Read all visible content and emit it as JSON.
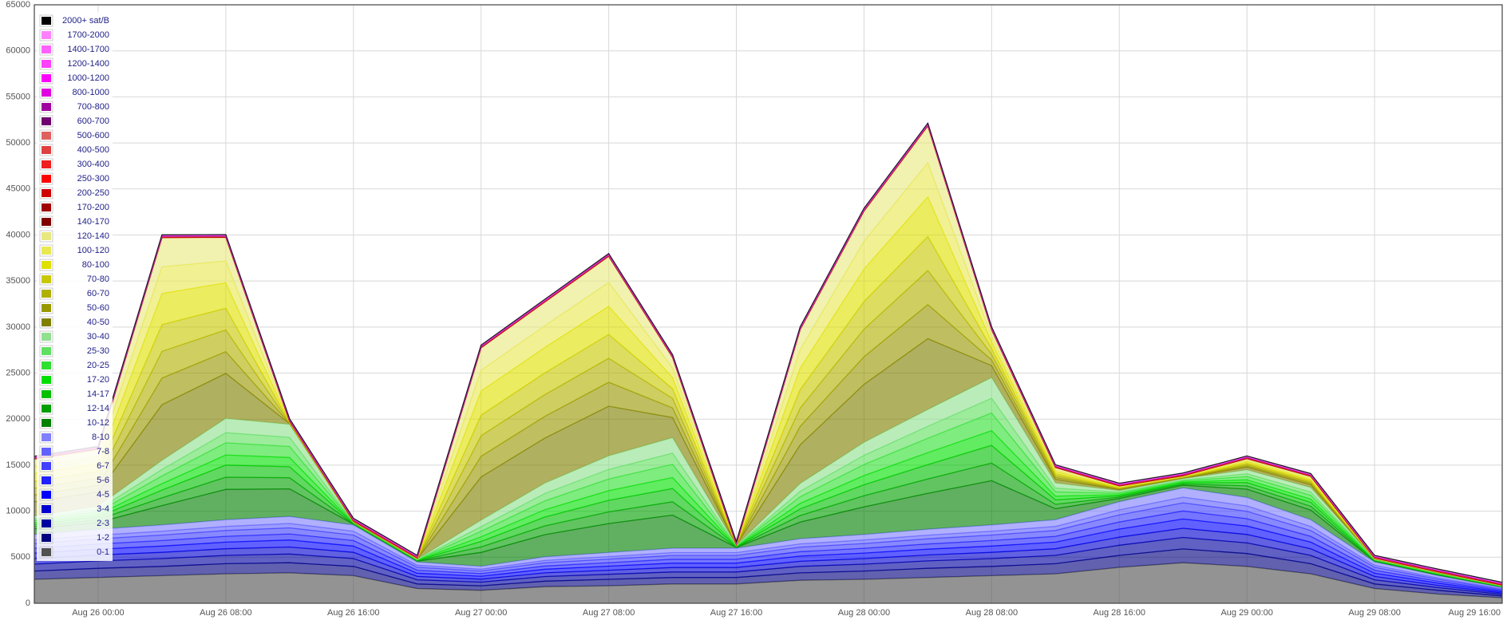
{
  "chart_data": {
    "type": "stacked-area",
    "x": [
      "Aug 25 20:00",
      "Aug 26 00:00",
      "Aug 26 04:00",
      "Aug 26 08:00",
      "Aug 26 12:00",
      "Aug 26 16:00",
      "Aug 26 20:00",
      "Aug 27 00:00",
      "Aug 27 04:00",
      "Aug 27 08:00",
      "Aug 27 12:00",
      "Aug 27 16:00",
      "Aug 27 20:00",
      "Aug 28 00:00",
      "Aug 28 04:00",
      "Aug 28 08:00",
      "Aug 28 12:00",
      "Aug 28 16:00",
      "Aug 28 20:00",
      "Aug 29 00:00",
      "Aug 29 04:00",
      "Aug 29 08:00",
      "Aug 29 12:00",
      "Aug 29 16:00"
    ],
    "xlim": [
      "Aug 25 20:00",
      "Aug 29 16:00"
    ],
    "xticks": [
      "Aug 26 00:00",
      "Aug 26 08:00",
      "Aug 26 16:00",
      "Aug 27 00:00",
      "Aug 27 08:00",
      "Aug 27 16:00",
      "Aug 28 00:00",
      "Aug 28 08:00",
      "Aug 28 16:00",
      "Aug 29 00:00",
      "Aug 29 08:00",
      "Aug 29 16:00"
    ],
    "ylim": [
      0,
      65000
    ],
    "yticks": [
      0,
      5000,
      10000,
      15000,
      20000,
      25000,
      30000,
      35000,
      40000,
      45000,
      50000,
      55000,
      60000,
      65000
    ],
    "grid": true,
    "legend": "top-left",
    "series": [
      {
        "name": "0-1",
        "color": "#505050",
        "values": [
          2600,
          2800,
          3000,
          3200,
          3300,
          3000,
          1600,
          1400,
          1800,
          1900,
          2100,
          2100,
          2500,
          2600,
          2800,
          3000,
          3200,
          3900,
          4400,
          4000,
          3200,
          1600,
          1000,
          600
        ]
      },
      {
        "name": "1-2",
        "color": "#000080",
        "values": [
          900,
          1000,
          1000,
          1100,
          1100,
          1000,
          500,
          500,
          600,
          700,
          700,
          700,
          800,
          900,
          1000,
          1000,
          1100,
          1300,
          1500,
          1400,
          1100,
          500,
          400,
          200
        ]
      },
      {
        "name": "2-3",
        "color": "#0000a0",
        "values": [
          750,
          800,
          850,
          900,
          950,
          850,
          450,
          400,
          500,
          550,
          600,
          600,
          700,
          750,
          800,
          850,
          900,
          1100,
          1250,
          1150,
          900,
          450,
          300,
          170
        ]
      },
      {
        "name": "3-4",
        "color": "#0000d0",
        "values": [
          600,
          640,
          680,
          720,
          760,
          680,
          360,
          320,
          400,
          440,
          480,
          480,
          560,
          600,
          640,
          680,
          720,
          880,
          1000,
          920,
          720,
          360,
          240,
          140
        ]
      },
      {
        "name": "4-5",
        "color": "#0000ff",
        "values": [
          600,
          640,
          680,
          720,
          760,
          680,
          360,
          320,
          400,
          440,
          480,
          480,
          560,
          600,
          640,
          680,
          720,
          880,
          1000,
          920,
          720,
          360,
          240,
          140
        ]
      },
      {
        "name": "5-6",
        "color": "#2020ff",
        "values": [
          520,
          560,
          600,
          630,
          660,
          600,
          320,
          280,
          350,
          380,
          420,
          420,
          490,
          520,
          560,
          600,
          630,
          770,
          880,
          800,
          630,
          320,
          210,
          120
        ]
      },
      {
        "name": "6-7",
        "color": "#4040ff",
        "values": [
          520,
          560,
          600,
          630,
          660,
          600,
          320,
          280,
          350,
          380,
          420,
          420,
          490,
          520,
          560,
          600,
          630,
          770,
          880,
          800,
          630,
          320,
          210,
          120
        ]
      },
      {
        "name": "7-8",
        "color": "#6060ff",
        "values": [
          380,
          400,
          420,
          450,
          480,
          420,
          220,
          200,
          250,
          280,
          300,
          300,
          350,
          380,
          400,
          420,
          450,
          550,
          620,
          580,
          450,
          220,
          150,
          80
        ]
      },
      {
        "name": "8-10",
        "color": "#8080ff",
        "values": [
          600,
          640,
          680,
          720,
          760,
          680,
          360,
          320,
          400,
          440,
          480,
          480,
          560,
          600,
          640,
          680,
          720,
          880,
          1000,
          920,
          720,
          360,
          240,
          140
        ]
      },
      {
        "name": "10-12",
        "color": "#008000",
        "values": [
          600,
          750,
          2100,
          3300,
          3000,
          90,
          90,
          1500,
          2400,
          3150,
          3600,
          90,
          1800,
          3000,
          3900,
          4800,
          1200,
          360,
          300,
          900,
          1050,
          90,
          90,
          60
        ]
      },
      {
        "name": "12-14",
        "color": "#00a000",
        "values": [
          240,
          300,
          840,
          1320,
          1200,
          36,
          36,
          600,
          960,
          1260,
          1440,
          36,
          720,
          1200,
          1560,
          1920,
          480,
          144,
          120,
          360,
          420,
          36,
          36,
          24
        ]
      },
      {
        "name": "14-17",
        "color": "#00c000",
        "values": [
          240,
          300,
          840,
          1320,
          1200,
          36,
          36,
          600,
          960,
          1260,
          1440,
          36,
          720,
          1200,
          1560,
          1920,
          480,
          144,
          120,
          360,
          420,
          36,
          36,
          24
        ]
      },
      {
        "name": "17-20",
        "color": "#00e000",
        "values": [
          200,
          250,
          700,
          1100,
          1000,
          30,
          30,
          500,
          800,
          1050,
          1200,
          30,
          600,
          1000,
          1300,
          1600,
          400,
          120,
          100,
          300,
          350,
          30,
          30,
          20
        ]
      },
      {
        "name": "20-25",
        "color": "#30e030",
        "values": [
          240,
          300,
          840,
          1320,
          1200,
          36,
          36,
          600,
          960,
          1260,
          1440,
          36,
          720,
          1200,
          1560,
          1920,
          480,
          144,
          120,
          360,
          420,
          36,
          36,
          24
        ]
      },
      {
        "name": "25-30",
        "color": "#60e060",
        "values": [
          200,
          250,
          700,
          1100,
          1000,
          30,
          30,
          500,
          800,
          1050,
          1200,
          30,
          600,
          1000,
          1300,
          1600,
          400,
          120,
          100,
          300,
          350,
          30,
          30,
          20
        ]
      },
      {
        "name": "30-40",
        "color": "#90e090",
        "values": [
          280,
          350,
          980,
          1540,
          1400,
          42,
          42,
          700,
          1120,
          1470,
          1680,
          42,
          840,
          1400,
          1820,
          2240,
          560,
          168,
          140,
          420,
          490,
          42,
          42,
          28
        ]
      },
      {
        "name": "40-50",
        "color": "#808000",
        "values": [
          1550,
          1550,
          6050,
          4900,
          75,
          25,
          25,
          4700,
          4900,
          5400,
          2200,
          25,
          4200,
          6300,
          7700,
          1300,
          400,
          120,
          75,
          300,
          300,
          25,
          25,
          12
        ]
      },
      {
        "name": "50-60",
        "color": "#989800",
        "values": [
          740,
          740,
          2900,
          2360,
          36,
          12,
          12,
          2240,
          2360,
          2600,
          1040,
          12,
          2000,
          3000,
          3700,
          620,
          200,
          60,
          36,
          144,
          144,
          12,
          12,
          6
        ]
      },
      {
        "name": "60-70",
        "color": "#b0b000",
        "values": [
          740,
          740,
          2900,
          2360,
          36,
          12,
          12,
          2240,
          2360,
          2600,
          1040,
          12,
          2000,
          3000,
          3700,
          620,
          200,
          60,
          36,
          144,
          144,
          12,
          12,
          6
        ]
      },
      {
        "name": "70-80",
        "color": "#c8c800",
        "values": [
          740,
          740,
          2900,
          2360,
          36,
          12,
          12,
          2240,
          2360,
          2600,
          1040,
          12,
          2000,
          3000,
          3700,
          620,
          200,
          60,
          36,
          144,
          144,
          12,
          12,
          6
        ]
      },
      {
        "name": "80-100",
        "color": "#e0e000",
        "values": [
          870,
          870,
          3390,
          2760,
          42,
          14,
          14,
          2620,
          2760,
          3040,
          1220,
          14,
          2340,
          3530,
          4300,
          730,
          240,
          70,
          42,
          170,
          170,
          14,
          14,
          7
        ]
      },
      {
        "name": "100-120",
        "color": "#e8e850",
        "values": [
          740,
          740,
          2900,
          2360,
          36,
          12,
          12,
          2240,
          2360,
          2600,
          1040,
          12,
          2000,
          3000,
          3700,
          620,
          200,
          60,
          36,
          144,
          144,
          12,
          12,
          6
        ]
      },
      {
        "name": "120-140",
        "color": "#e8e880",
        "values": [
          800,
          800,
          3150,
          2560,
          39,
          13,
          13,
          2430,
          2560,
          2820,
          1130,
          13,
          2170,
          3280,
          3990,
          680,
          220,
          65,
          39,
          156,
          156,
          13,
          13,
          7
        ]
      },
      {
        "name": "140-170",
        "color": "#800000",
        "values": [
          20,
          20,
          20,
          20,
          20,
          20,
          20,
          20,
          20,
          20,
          20,
          20,
          20,
          20,
          20,
          20,
          20,
          20,
          20,
          20,
          20,
          20,
          20,
          20
        ]
      },
      {
        "name": "170-200",
        "color": "#a00000",
        "values": [
          20,
          20,
          20,
          20,
          20,
          20,
          20,
          20,
          20,
          20,
          20,
          20,
          20,
          20,
          20,
          20,
          20,
          20,
          20,
          20,
          20,
          20,
          20,
          20
        ]
      },
      {
        "name": "200-250",
        "color": "#d00000",
        "values": [
          20,
          20,
          20,
          20,
          20,
          20,
          20,
          20,
          20,
          20,
          20,
          20,
          20,
          20,
          20,
          20,
          20,
          20,
          20,
          20,
          20,
          20,
          20,
          20
        ]
      },
      {
        "name": "250-300",
        "color": "#ff0000",
        "values": [
          20,
          20,
          20,
          20,
          20,
          20,
          20,
          20,
          20,
          20,
          20,
          20,
          20,
          20,
          20,
          20,
          20,
          20,
          20,
          20,
          20,
          20,
          20,
          20
        ]
      },
      {
        "name": "300-400",
        "color": "#f02020",
        "values": [
          20,
          20,
          20,
          20,
          20,
          20,
          20,
          20,
          20,
          20,
          20,
          20,
          20,
          20,
          20,
          20,
          20,
          20,
          20,
          20,
          20,
          20,
          20,
          20
        ]
      },
      {
        "name": "400-500",
        "color": "#e04040",
        "values": [
          20,
          20,
          20,
          20,
          20,
          20,
          20,
          20,
          20,
          20,
          20,
          20,
          20,
          20,
          20,
          20,
          20,
          20,
          20,
          20,
          20,
          20,
          20,
          20
        ]
      },
      {
        "name": "500-600",
        "color": "#e06060",
        "values": [
          20,
          20,
          20,
          20,
          20,
          20,
          20,
          20,
          20,
          20,
          20,
          20,
          20,
          20,
          20,
          20,
          20,
          20,
          20,
          20,
          20,
          20,
          20,
          20
        ]
      },
      {
        "name": "600-700",
        "color": "#700070",
        "values": [
          20,
          20,
          20,
          20,
          20,
          20,
          20,
          20,
          20,
          20,
          20,
          20,
          20,
          20,
          20,
          20,
          20,
          20,
          20,
          20,
          20,
          20,
          20,
          20
        ]
      },
      {
        "name": "700-800",
        "color": "#a000a0",
        "values": [
          20,
          20,
          20,
          20,
          20,
          20,
          20,
          20,
          20,
          20,
          20,
          20,
          20,
          20,
          20,
          20,
          20,
          20,
          20,
          20,
          20,
          20,
          20,
          20
        ]
      },
      {
        "name": "800-1000",
        "color": "#e000e0",
        "values": [
          20,
          20,
          20,
          20,
          20,
          20,
          20,
          20,
          20,
          20,
          20,
          20,
          20,
          20,
          20,
          20,
          20,
          20,
          20,
          20,
          20,
          20,
          20,
          20
        ]
      },
      {
        "name": "1000-1200",
        "color": "#ff00ff",
        "values": [
          20,
          20,
          20,
          20,
          20,
          20,
          20,
          20,
          20,
          20,
          20,
          20,
          20,
          20,
          20,
          20,
          20,
          20,
          20,
          20,
          20,
          20,
          20,
          20
        ]
      },
      {
        "name": "1200-1400",
        "color": "#ff40ff",
        "values": [
          20,
          20,
          20,
          20,
          20,
          20,
          20,
          20,
          20,
          20,
          20,
          20,
          20,
          20,
          20,
          20,
          20,
          20,
          20,
          20,
          20,
          20,
          20,
          20
        ]
      },
      {
        "name": "1400-1700",
        "color": "#ff60ff",
        "values": [
          20,
          20,
          20,
          20,
          20,
          20,
          20,
          20,
          20,
          20,
          20,
          20,
          20,
          20,
          20,
          20,
          20,
          20,
          20,
          20,
          20,
          20,
          20,
          20
        ]
      },
      {
        "name": "1700-2000",
        "color": "#ff80ff",
        "values": [
          20,
          20,
          20,
          20,
          20,
          20,
          20,
          20,
          20,
          20,
          20,
          20,
          20,
          20,
          20,
          20,
          20,
          20,
          20,
          20,
          20,
          20,
          20,
          20
        ]
      },
      {
        "name": "2000+ sat/B",
        "color": "#000000",
        "values": [
          30,
          30,
          30,
          30,
          30,
          30,
          30,
          30,
          30,
          30,
          30,
          30,
          30,
          30,
          30,
          30,
          30,
          30,
          30,
          30,
          30,
          30,
          30,
          30
        ]
      }
    ]
  }
}
